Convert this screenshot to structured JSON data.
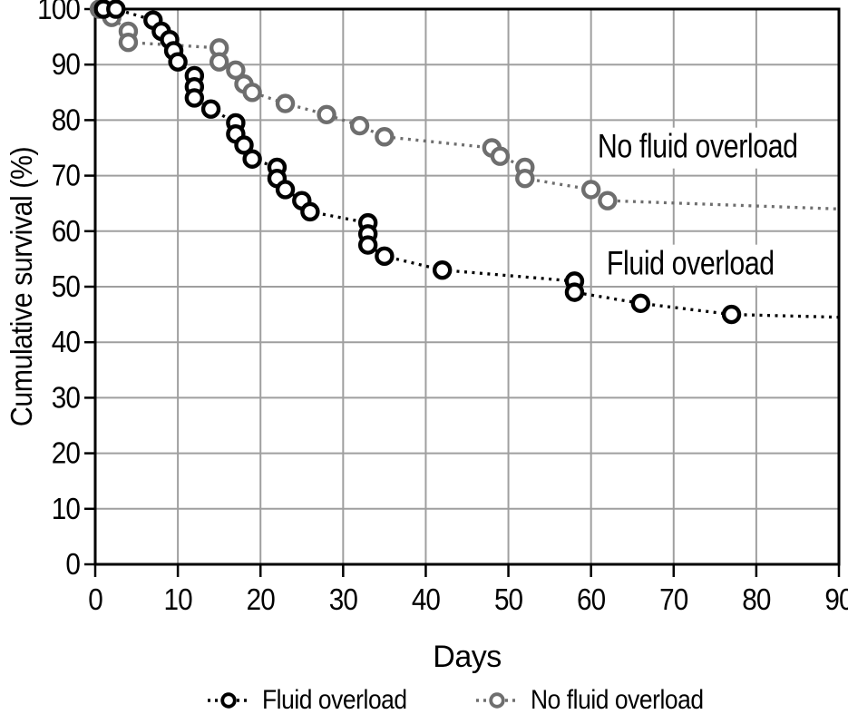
{
  "chart_data": {
    "type": "line",
    "subtype": "kaplan-meier-survival",
    "title": "",
    "xlabel": "Days",
    "ylabel": "Cumulative survival (%)",
    "xlim": [
      0,
      90
    ],
    "ylim": [
      0,
      100
    ],
    "xticks": [
      0,
      10,
      20,
      30,
      40,
      50,
      60,
      70,
      80,
      90
    ],
    "yticks": [
      0,
      10,
      20,
      30,
      40,
      50,
      60,
      70,
      80,
      90,
      100
    ],
    "grid": true,
    "grid_color": "#9f9f9f",
    "frame_color": "#000000",
    "legend_position": "bottom",
    "series": [
      {
        "name": "No fluid overload",
        "color": "#6e6e6e",
        "marker": "open-circle",
        "line_style": "dotted",
        "points": [
          [
            0.5,
            100
          ],
          [
            2,
            98.5
          ],
          [
            4,
            96
          ],
          [
            4,
            94
          ],
          [
            15,
            93
          ],
          [
            15,
            90.5
          ],
          [
            17,
            89
          ],
          [
            18,
            86.5
          ],
          [
            19,
            85
          ],
          [
            23,
            83
          ],
          [
            28,
            81
          ],
          [
            32,
            79
          ],
          [
            35,
            77
          ],
          [
            48,
            75
          ],
          [
            49,
            73.5
          ],
          [
            52,
            71.5
          ],
          [
            52,
            69.5
          ],
          [
            60,
            67.5
          ],
          [
            62,
            65.5
          ]
        ],
        "line_end": [
          90,
          64
        ]
      },
      {
        "name": "Fluid overload",
        "color": "#000000",
        "marker": "open-circle",
        "line_style": "dotted",
        "points": [
          [
            1,
            100
          ],
          [
            2.5,
            100
          ],
          [
            7,
            98
          ],
          [
            8,
            96
          ],
          [
            9,
            94.5
          ],
          [
            9.5,
            92.5
          ],
          [
            10,
            90.5
          ],
          [
            12,
            88
          ],
          [
            12,
            86
          ],
          [
            12,
            84
          ],
          [
            14,
            82
          ],
          [
            17,
            79.5
          ],
          [
            17,
            77.5
          ],
          [
            18,
            75.5
          ],
          [
            19,
            73
          ],
          [
            22,
            71.5
          ],
          [
            22,
            69.5
          ],
          [
            23,
            67.5
          ],
          [
            25,
            65.5
          ],
          [
            26,
            63.5
          ],
          [
            33,
            61.5
          ],
          [
            33,
            59.5
          ],
          [
            33,
            57.5
          ],
          [
            35,
            55.5
          ],
          [
            42,
            53
          ],
          [
            58,
            51
          ],
          [
            58,
            49
          ],
          [
            66,
            47
          ],
          [
            77,
            45
          ]
        ],
        "line_end": [
          90,
          44.5
        ]
      }
    ],
    "annotations": [
      {
        "text": "No fluid overload",
        "day": 60.3,
        "pct": 74.8
      },
      {
        "text": "Fluid overload",
        "day": 61.4,
        "pct": 53.8
      }
    ],
    "legend": [
      {
        "label": "Fluid overload",
        "color": "#000000"
      },
      {
        "label": "No fluid overload",
        "color": "#6e6e6e"
      }
    ]
  }
}
